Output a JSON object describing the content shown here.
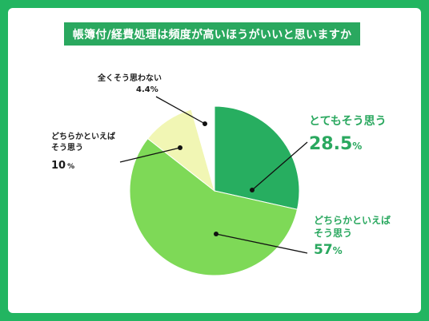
{
  "chart_data": {
    "type": "pie",
    "title": "帳簿付/経費処理は頻度が高いほうがいいと思いますか",
    "slices": [
      {
        "label": "とてもそう思う",
        "value": 28.5,
        "display_value": "28.5",
        "unit": "%",
        "color": "#27ae60"
      },
      {
        "label": "どちらかといえばそう思う",
        "label_line1": "どちらかといえば",
        "label_line2": "そう思う",
        "value": 57,
        "display_value": "57",
        "unit": "%",
        "color": "#7ed957"
      },
      {
        "label": "どちらかといえばそう思う",
        "label_line1": "どちらかといえば",
        "label_line2": "そう思う",
        "value": 10,
        "display_value": "10",
        "unit": "%",
        "color": "#f1f6b4"
      },
      {
        "label": "全くそう思わない",
        "value": 4.4,
        "display_value": "4.4",
        "unit": "%",
        "color": "#ffffff"
      }
    ]
  },
  "colors": {
    "background": "#22b561",
    "accent": "#2aa85f"
  }
}
